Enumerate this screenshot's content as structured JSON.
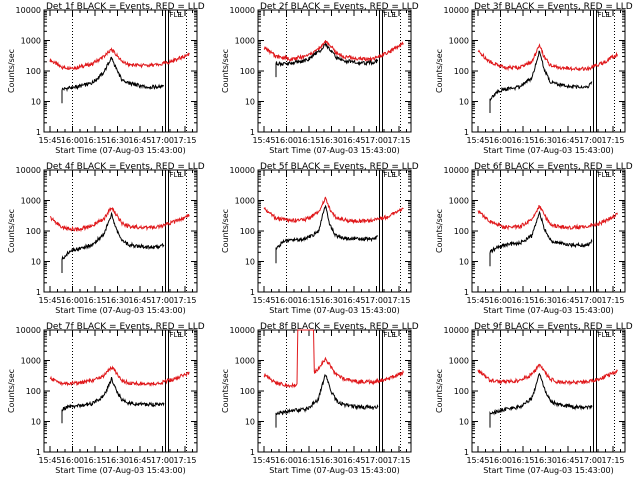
{
  "colors": {
    "events": "#000000",
    "lld": "#e0191c",
    "background": "#ffffff",
    "axis": "#000000"
  },
  "chart_data": [
    {
      "type": "line",
      "title": "Det 1f BLACK = Events, RED = LLD",
      "xlabel": "Start Time (07-Aug-03 15:43:00)",
      "ylabel": "Counts/sec",
      "yscale": "log",
      "ylim": [
        1,
        10000
      ],
      "yticks": [
        "1",
        "10",
        "100",
        "1000",
        "10000"
      ],
      "xticks": [
        "15:45",
        "16:00",
        "16:15",
        "16:30",
        "16:45",
        "17:00",
        "17:15"
      ],
      "xlim_min": [
        -2,
        100
      ],
      "dotted_vlines_min": [
        17,
        93
      ],
      "solid_vlines_min": [
        79,
        81
      ],
      "markers": [
        "FLE",
        "L"
      ],
      "series": [
        {
          "name": "LLD",
          "color": "red",
          "x": [
            2,
            10,
            20,
            30,
            38,
            43,
            46,
            50,
            55,
            65,
            75,
            85,
            95
          ],
          "y": [
            230,
            130,
            130,
            170,
            300,
            500,
            350,
            200,
            160,
            150,
            160,
            220,
            360
          ]
        },
        {
          "name": "Events",
          "color": "black",
          "x": [
            10,
            15,
            20,
            30,
            38,
            43,
            46,
            50,
            55,
            65,
            75,
            78
          ],
          "y": [
            25,
            28,
            30,
            40,
            90,
            300,
            120,
            50,
            40,
            30,
            30,
            33
          ]
        }
      ]
    },
    {
      "type": "line",
      "title": "Det 2f BLACK = Events, RED = LLD",
      "xlabel": "Start Time (07-Aug-03 15:43:00)",
      "ylabel": "Counts/sec",
      "yscale": "log",
      "ylim": [
        1,
        10000
      ],
      "yticks": [
        "1",
        "10",
        "100",
        "1000",
        "10000"
      ],
      "xticks": [
        "15:45",
        "16:00",
        "16:15",
        "16:30",
        "16:45",
        "17:00",
        "17:15"
      ],
      "xlim_min": [
        -2,
        100
      ],
      "dotted_vlines_min": [
        17,
        93
      ],
      "solid_vlines_min": [
        79,
        81
      ],
      "markers": [
        "FLE",
        "L"
      ],
      "series": [
        {
          "name": "LLD",
          "color": "red",
          "x": [
            2,
            10,
            20,
            30,
            38,
            43,
            46,
            50,
            55,
            65,
            75,
            85,
            95
          ],
          "y": [
            600,
            300,
            250,
            300,
            500,
            900,
            700,
            400,
            300,
            250,
            250,
            400,
            800
          ]
        },
        {
          "name": "Events",
          "color": "black",
          "x": [
            10,
            15,
            20,
            30,
            38,
            43,
            46,
            50,
            55,
            65,
            75,
            78
          ],
          "y": [
            180,
            170,
            180,
            220,
            400,
            700,
            500,
            280,
            220,
            180,
            190,
            220
          ]
        }
      ]
    },
    {
      "type": "line",
      "title": "Det 3f BLACK = Events, RED = LLD",
      "xlabel": "Start Time (07-Aug-03 15:43:00)",
      "ylabel": "Counts/sec",
      "yscale": "log",
      "ylim": [
        1,
        10000
      ],
      "yticks": [
        "1",
        "10",
        "100",
        "1000",
        "10000"
      ],
      "xticks": [
        "15:45",
        "16:00",
        "16:15",
        "16:30",
        "16:45",
        "17:00",
        "17:15"
      ],
      "xlim_min": [
        -2,
        100
      ],
      "dotted_vlines_min": [
        17,
        93
      ],
      "solid_vlines_min": [
        79,
        81
      ],
      "markers": [
        "FLE",
        "L"
      ],
      "series": [
        {
          "name": "LLD",
          "color": "red",
          "x": [
            2,
            10,
            20,
            30,
            38,
            43,
            46,
            50,
            55,
            65,
            75,
            85,
            95
          ],
          "y": [
            450,
            200,
            130,
            130,
            200,
            700,
            300,
            160,
            130,
            120,
            120,
            180,
            350
          ]
        },
        {
          "name": "Events",
          "color": "black",
          "x": [
            10,
            15,
            20,
            30,
            38,
            43,
            46,
            50,
            55,
            65,
            75,
            78
          ],
          "y": [
            12,
            22,
            25,
            30,
            60,
            450,
            120,
            45,
            35,
            30,
            30,
            45
          ]
        }
      ]
    },
    {
      "type": "line",
      "title": "Det 4f BLACK = Events, RED = LLD",
      "xlabel": "Start Time (07-Aug-03 15:43:00)",
      "ylabel": "Counts/sec",
      "yscale": "log",
      "ylim": [
        1,
        10000
      ],
      "yticks": [
        "1",
        "10",
        "100",
        "1000",
        "10000"
      ],
      "xticks": [
        "15:45",
        "16:00",
        "16:15",
        "16:30",
        "16:45",
        "17:00",
        "17:15"
      ],
      "xlim_min": [
        -2,
        100
      ],
      "dotted_vlines_min": [
        17,
        93
      ],
      "solid_vlines_min": [
        79,
        81
      ],
      "markers": [
        "FLE",
        "L"
      ],
      "series": [
        {
          "name": "LLD",
          "color": "red",
          "x": [
            2,
            10,
            20,
            30,
            38,
            43,
            46,
            50,
            55,
            65,
            75,
            85,
            95
          ],
          "y": [
            280,
            130,
            110,
            150,
            250,
            600,
            350,
            180,
            140,
            130,
            140,
            200,
            330
          ]
        },
        {
          "name": "Events",
          "color": "black",
          "x": [
            10,
            15,
            20,
            30,
            38,
            43,
            46,
            50,
            55,
            65,
            75,
            78
          ],
          "y": [
            12,
            22,
            25,
            35,
            80,
            350,
            120,
            45,
            35,
            30,
            30,
            35
          ]
        }
      ]
    },
    {
      "type": "line",
      "title": "Det 5f BLACK = Events, RED = LLD",
      "xlabel": "Start Time (07-Aug-03 15:43:00)",
      "ylabel": "Counts/sec",
      "yscale": "log",
      "ylim": [
        1,
        10000
      ],
      "yticks": [
        "1",
        "10",
        "100",
        "1000",
        "10000"
      ],
      "xticks": [
        "15:45",
        "16:00",
        "16:15",
        "16:30",
        "16:45",
        "17:00",
        "17:15"
      ],
      "xlim_min": [
        -2,
        100
      ],
      "dotted_vlines_min": [
        17,
        93
      ],
      "solid_vlines_min": [
        79,
        81
      ],
      "markers": [
        "FLE",
        "L"
      ],
      "series": [
        {
          "name": "LLD",
          "color": "red",
          "x": [
            2,
            10,
            20,
            30,
            38,
            43,
            46,
            50,
            55,
            65,
            75,
            85,
            95
          ],
          "y": [
            550,
            260,
            220,
            240,
            400,
            1200,
            500,
            280,
            230,
            210,
            220,
            300,
            550
          ]
        },
        {
          "name": "Events",
          "color": "black",
          "x": [
            10,
            15,
            20,
            30,
            38,
            43,
            46,
            50,
            55,
            65,
            75,
            78
          ],
          "y": [
            25,
            45,
            50,
            55,
            90,
            700,
            150,
            70,
            60,
            55,
            55,
            70
          ]
        }
      ]
    },
    {
      "type": "line",
      "title": "Det 6f BLACK = Events, RED = LLD",
      "xlabel": "Start Time (07-Aug-03 15:43:00)",
      "ylabel": "Counts/sec",
      "yscale": "log",
      "ylim": [
        1,
        10000
      ],
      "yticks": [
        "1",
        "10",
        "100",
        "1000",
        "10000"
      ],
      "xticks": [
        "15:45",
        "16:00",
        "16:15",
        "16:30",
        "16:45",
        "17:00",
        "17:15"
      ],
      "xlim_min": [
        -2,
        100
      ],
      "dotted_vlines_min": [
        17,
        93
      ],
      "solid_vlines_min": [
        79,
        81
      ],
      "markers": [
        "FLE",
        "L"
      ],
      "series": [
        {
          "name": "LLD",
          "color": "red",
          "x": [
            2,
            10,
            20,
            30,
            38,
            43,
            46,
            50,
            55,
            65,
            75,
            85,
            95
          ],
          "y": [
            450,
            200,
            130,
            140,
            250,
            700,
            350,
            170,
            140,
            130,
            140,
            190,
            350
          ]
        },
        {
          "name": "Events",
          "color": "black",
          "x": [
            10,
            15,
            20,
            30,
            38,
            43,
            46,
            50,
            55,
            65,
            75,
            78
          ],
          "y": [
            20,
            30,
            35,
            40,
            70,
            400,
            130,
            50,
            40,
            35,
            35,
            45
          ]
        }
      ]
    },
    {
      "type": "line",
      "title": "Det 7f BLACK = Events, RED = LLD",
      "xlabel": "Start Time (07-Aug-03 15:43:00)",
      "ylabel": "Counts/sec",
      "yscale": "log",
      "ylim": [
        1,
        10000
      ],
      "yticks": [
        "1",
        "10",
        "100",
        "1000",
        "10000"
      ],
      "xticks": [
        "15:45",
        "16:00",
        "16:15",
        "16:30",
        "16:45",
        "17:00",
        "17:15"
      ],
      "xlim_min": [
        -2,
        100
      ],
      "dotted_vlines_min": [
        17,
        93
      ],
      "solid_vlines_min": [
        79,
        81
      ],
      "markers": [
        "FLE",
        "L"
      ],
      "series": [
        {
          "name": "LLD",
          "color": "red",
          "x": [
            2,
            10,
            20,
            30,
            38,
            43,
            46,
            50,
            55,
            65,
            75,
            85,
            95
          ],
          "y": [
            260,
            180,
            180,
            220,
            320,
            600,
            400,
            220,
            180,
            170,
            180,
            250,
            400
          ]
        },
        {
          "name": "Events",
          "color": "black",
          "x": [
            10,
            15,
            20,
            30,
            38,
            43,
            46,
            50,
            55,
            65,
            75,
            78
          ],
          "y": [
            25,
            30,
            32,
            38,
            70,
            250,
            110,
            50,
            40,
            36,
            36,
            40
          ]
        }
      ]
    },
    {
      "type": "line",
      "title": "Det 8f BLACK = Events, RED = LLD",
      "xlabel": "Start Time (07-Aug-03 15:43:00)",
      "ylabel": "Counts/sec",
      "yscale": "log",
      "ylim": [
        1,
        10000
      ],
      "yticks": [
        "1",
        "10",
        "100",
        "1000",
        "10000"
      ],
      "xticks": [
        "15:45",
        "16:00",
        "16:15",
        "16:30",
        "16:45",
        "17:00",
        "17:15"
      ],
      "xlim_min": [
        -2,
        100
      ],
      "dotted_vlines_min": [
        17,
        93
      ],
      "solid_vlines_min": [
        79,
        81
      ],
      "markers": [
        "FLE",
        "L"
      ],
      "series": [
        {
          "name": "LLD",
          "color": "red",
          "x": [
            2,
            10,
            20,
            24,
            24.5,
            35,
            35.5,
            38,
            43,
            46,
            50,
            55,
            65,
            75,
            85,
            95
          ],
          "y": [
            350,
            180,
            150,
            160,
            10000,
            10000,
            400,
            500,
            1100,
            700,
            350,
            250,
            200,
            200,
            250,
            400
          ]
        },
        {
          "name": "Events",
          "color": "black",
          "x": [
            10,
            15,
            20,
            30,
            38,
            43,
            46,
            50,
            55,
            65,
            75,
            78
          ],
          "y": [
            18,
            20,
            22,
            25,
            50,
            350,
            120,
            50,
            35,
            30,
            28,
            30
          ]
        }
      ]
    },
    {
      "type": "line",
      "title": "Det 9f BLACK = Events, RED = LLD",
      "xlabel": "Start Time (07-Aug-03 15:43:00)",
      "ylabel": "Counts/sec",
      "yscale": "log",
      "ylim": [
        1,
        10000
      ],
      "yticks": [
        "1",
        "10",
        "100",
        "1000",
        "10000"
      ],
      "xticks": [
        "15:45",
        "16:00",
        "16:15",
        "16:30",
        "16:45",
        "17:00",
        "17:15"
      ],
      "xlim_min": [
        -2,
        100
      ],
      "dotted_vlines_min": [
        17,
        93
      ],
      "solid_vlines_min": [
        79,
        81
      ],
      "markers": [
        "FLE",
        "L"
      ],
      "series": [
        {
          "name": "LLD",
          "color": "red",
          "x": [
            2,
            10,
            20,
            30,
            38,
            43,
            46,
            50,
            55,
            65,
            75,
            85,
            95
          ],
          "y": [
            480,
            220,
            200,
            220,
            350,
            700,
            450,
            250,
            200,
            190,
            200,
            270,
            450
          ]
        },
        {
          "name": "Events",
          "color": "black",
          "x": [
            10,
            15,
            20,
            30,
            38,
            43,
            46,
            50,
            55,
            65,
            75,
            78
          ],
          "y": [
            18,
            22,
            25,
            30,
            60,
            350,
            130,
            50,
            35,
            30,
            28,
            30
          ]
        }
      ]
    }
  ]
}
